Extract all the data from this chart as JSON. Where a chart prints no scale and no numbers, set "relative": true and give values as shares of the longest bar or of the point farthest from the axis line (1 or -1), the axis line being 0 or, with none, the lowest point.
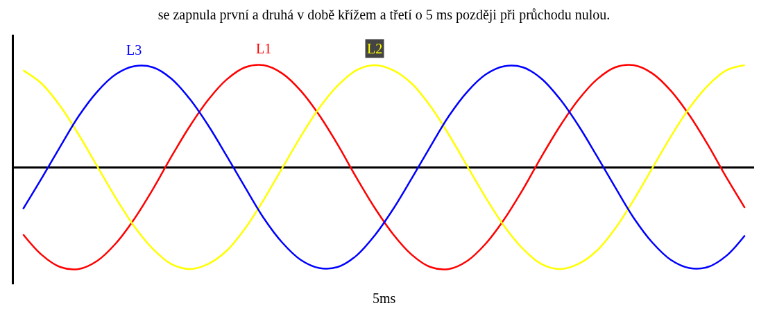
{
  "chart_data": {
    "type": "line",
    "relative": true,
    "title": "se zapnula první a druhá v době křížem a třetí o 5 ms později při průchodu nulou.",
    "categories": [
      null,
      null,
      null,
      null,
      null,
      null,
      null,
      null,
      null,
      null,
      null,
      null,
      null,
      null,
      null,
      null,
      null,
      null,
      null,
      null,
      null,
      null,
      null,
      null,
      null,
      null,
      null,
      null,
      null,
      null,
      null,
      null,
      null,
      null,
      null,
      null,
      null,
      null,
      null,
      null
    ],
    "series": [
      {
        "name": "L1",
        "color": "#ff0000",
        "values": [
          -0.66,
          -0.86,
          -0.98,
          -1.0,
          -0.92,
          -0.75,
          -0.51,
          -0.22,
          0.1,
          0.4,
          0.66,
          0.86,
          0.98,
          1.0,
          0.92,
          0.75,
          0.51,
          0.22,
          -0.1,
          -0.4,
          -0.66,
          -0.86,
          -0.98,
          -1.0,
          -0.92,
          -0.75,
          -0.51,
          -0.22,
          0.1,
          0.4,
          0.66,
          0.86,
          0.98,
          1.0,
          0.92,
          0.75,
          0.51,
          0.22,
          -0.1,
          -0.4
        ]
      },
      {
        "name": "L2",
        "color": "#ffff00",
        "values": [
          0.95,
          0.82,
          0.6,
          0.32,
          0.01,
          -0.3,
          -0.58,
          -0.8,
          -0.95,
          -1.0,
          -0.95,
          -0.82,
          -0.6,
          -0.32,
          -0.01,
          0.3,
          0.58,
          0.8,
          0.95,
          1.0,
          0.95,
          0.82,
          0.6,
          0.32,
          0.01,
          -0.3,
          -0.58,
          -0.8,
          -0.95,
          -1.0,
          -0.95,
          -0.82,
          -0.6,
          -0.32,
          -0.01,
          0.3,
          0.58,
          0.8,
          0.95,
          1.0
        ]
      },
      {
        "name": "L3",
        "color": "#0000ff",
        "values": [
          -0.41,
          -0.11,
          0.2,
          0.5,
          0.74,
          0.91,
          0.99,
          0.98,
          0.87,
          0.67,
          0.41,
          0.11,
          -0.2,
          -0.5,
          -0.74,
          -0.91,
          -0.99,
          -0.98,
          -0.87,
          -0.67,
          -0.41,
          -0.11,
          0.2,
          0.5,
          0.74,
          0.91,
          0.99,
          0.98,
          0.87,
          0.67,
          0.41,
          0.11,
          -0.2,
          -0.5,
          -0.74,
          -0.91,
          -0.99,
          -0.98,
          -0.87,
          -0.67
        ]
      }
    ],
    "annotations": [
      "5ms"
    ],
    "legend": false,
    "marker": "none",
    "line_style": "solid"
  }
}
